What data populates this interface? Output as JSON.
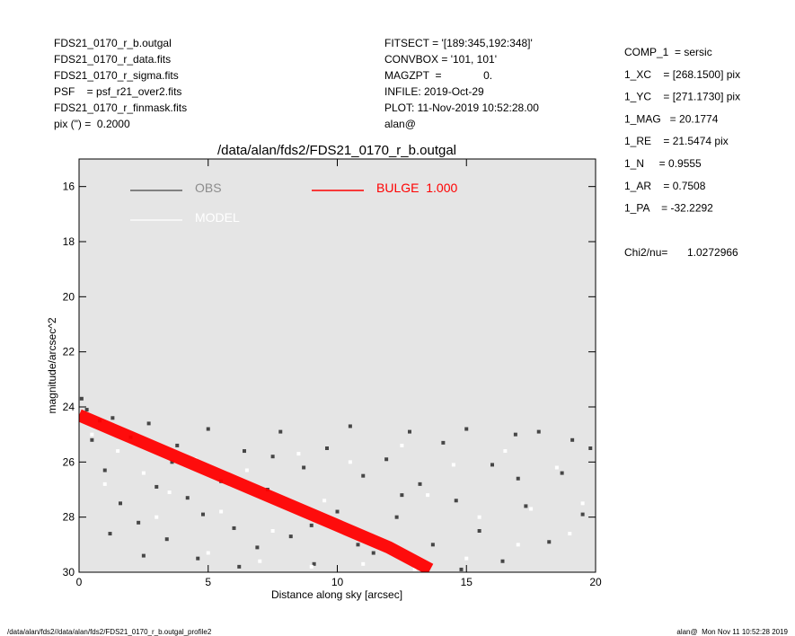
{
  "header": {
    "left": [
      "FDS21_0170_r_b.outgal",
      "FDS21_0170_r_data.fits",
      "FDS21_0170_r_sigma.fits",
      "PSF    = psf_r21_over2.fits",
      "FDS21_0170_r_finmask.fits",
      "pix (\") =  0.2000"
    ],
    "middle": [
      "FITSECT = '[189:345,192:348]'",
      "CONVBOX = '101, 101'",
      "MAGZPT  =              0.",
      "INFILE: 2019-Oct-29",
      "PLOT: 11-Nov-2019 10:52:28.00",
      "alan@"
    ],
    "right": [
      "COMP_1  = sersic",
      "1_XC    = [268.1500] pix",
      "1_YC    = [271.1730] pix",
      "1_MAG   = 20.1774",
      "1_RE    = 21.5474 pix",
      "1_N     = 0.9555",
      "1_AR    = 0.7508",
      "1_PA    = -32.2292"
    ],
    "chi2_label": "Chi2/nu=",
    "chi2_value": "1.0272966"
  },
  "footer": {
    "left": "/data/alan/fds2//data/alan/fds2/FDS21_0170_r_b.outgal_profile2",
    "right": "alan@  Mon Nov 11 10:52:28 2019"
  },
  "chart_data": {
    "type": "scatter",
    "title": "/data/alan/fds2/FDS21_0170_r_b.outgal",
    "xlabel": "Distance along sky [arcsec]",
    "ylabel": "magnitude/arcsec^2",
    "xlim": [
      0,
      20
    ],
    "ylim": [
      15,
      30
    ],
    "y_inverted": true,
    "xticks": [
      0,
      5,
      10,
      15,
      20
    ],
    "yticks": [
      16,
      18,
      20,
      22,
      24,
      26,
      28,
      30
    ],
    "background": "#e5e5e5",
    "series": [
      {
        "name": "OBS",
        "color": "#464646",
        "mode": "points",
        "x": [
          0.1,
          0.3,
          0.5,
          0.8,
          1.0,
          1.3,
          1.6,
          2.0,
          2.3,
          2.7,
          3.0,
          3.4,
          3.8,
          4.2,
          4.6,
          5.0,
          5.5,
          6.0,
          6.4,
          6.9,
          7.3,
          7.8,
          8.2,
          8.7,
          9.1,
          9.6,
          10.0,
          10.5,
          11.0,
          11.4,
          11.9,
          12.3,
          12.8,
          13.2,
          13.7,
          14.1,
          14.6,
          15.0,
          15.5,
          16.0,
          16.4,
          16.9,
          17.3,
          17.8,
          18.2,
          18.7,
          19.1,
          19.5,
          19.8,
          1.2,
          2.5,
          3.6,
          4.8,
          6.2,
          7.5,
          9.0,
          10.8,
          12.5,
          14.8,
          17.0
        ],
        "values": [
          23.7,
          24.1,
          25.2,
          24.5,
          26.3,
          24.4,
          27.5,
          25.1,
          28.2,
          24.6,
          26.9,
          28.8,
          25.4,
          27.3,
          29.5,
          24.8,
          26.7,
          28.4,
          25.6,
          29.1,
          27.0,
          24.9,
          28.7,
          26.2,
          29.7,
          25.5,
          27.8,
          24.7,
          26.5,
          29.3,
          25.9,
          28.0,
          24.9,
          26.8,
          29.0,
          25.3,
          27.4,
          24.8,
          28.5,
          26.1,
          29.6,
          25.0,
          27.6,
          24.9,
          28.9,
          26.4,
          25.2,
          27.9,
          25.5,
          28.6,
          29.4,
          26.0,
          27.9,
          29.8,
          25.8,
          28.3,
          29.0,
          27.2,
          29.9,
          26.6
        ]
      },
      {
        "name": "MODEL",
        "color": "#ffffff",
        "mode": "points",
        "x": [
          0.5,
          1.5,
          2.5,
          3.5,
          4.5,
          5.5,
          6.5,
          7.5,
          8.5,
          9.5,
          10.5,
          11.5,
          12.5,
          13.5,
          14.5,
          15.5,
          16.5,
          17.5,
          18.5,
          19.5,
          1.0,
          3.0,
          5.0,
          7.0,
          9.0,
          11.0,
          13.0,
          15.0,
          17.0,
          19.0
        ],
        "values": [
          25.0,
          25.6,
          26.4,
          27.1,
          25.9,
          27.8,
          26.3,
          28.5,
          25.7,
          27.4,
          26.0,
          28.8,
          25.4,
          27.2,
          26.1,
          28.0,
          25.6,
          27.7,
          26.2,
          27.5,
          26.8,
          28.0,
          29.3,
          29.6,
          29.8,
          29.7,
          29.9,
          29.5,
          29.0,
          28.6
        ]
      },
      {
        "name": "BULGE  1.000",
        "color": "#ff0000",
        "mode": "line",
        "x": [
          0,
          2,
          4,
          6,
          8,
          10,
          12,
          13.6
        ],
        "values": [
          24.3,
          25.1,
          25.9,
          26.7,
          27.5,
          28.3,
          29.1,
          29.9
        ]
      }
    ]
  }
}
